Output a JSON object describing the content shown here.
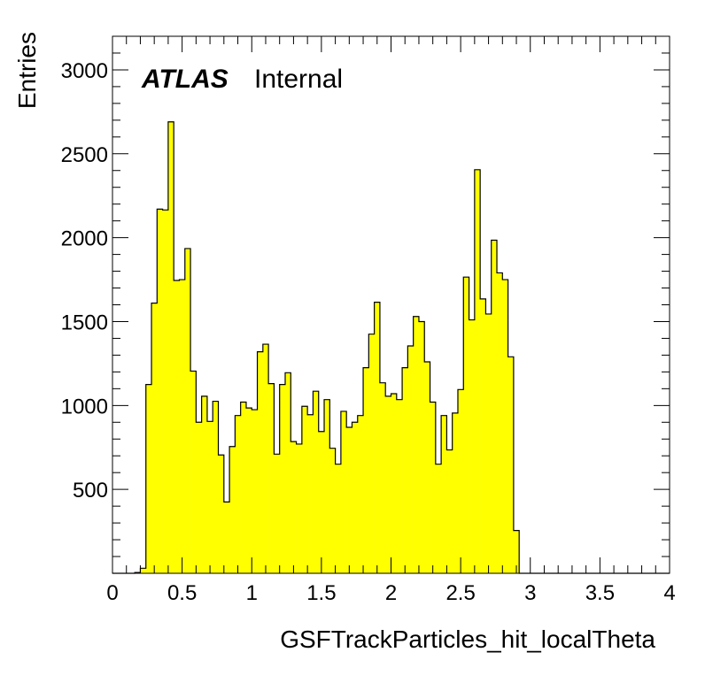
{
  "chart_data": {
    "type": "bar",
    "style": "histogram",
    "xlabel": "GSFTrackParticles_hit_localTheta",
    "ylabel": "Entries",
    "xlim": [
      0,
      4
    ],
    "ylim": [
      0,
      3200
    ],
    "bin_width": 0.04,
    "fill_color": "#ffff00",
    "line_color": "#000000",
    "xticks": [
      {
        "value": 0,
        "label": "0"
      },
      {
        "value": 0.5,
        "label": "0.5"
      },
      {
        "value": 1,
        "label": "1"
      },
      {
        "value": 1.5,
        "label": "1.5"
      },
      {
        "value": 2,
        "label": "2"
      },
      {
        "value": 2.5,
        "label": "2.5"
      },
      {
        "value": 3,
        "label": "3"
      },
      {
        "value": 3.5,
        "label": "3.5"
      },
      {
        "value": 4,
        "label": "4"
      }
    ],
    "yticks": [
      {
        "value": 500,
        "label": "500"
      },
      {
        "value": 1000,
        "label": "1000"
      },
      {
        "value": 1500,
        "label": "1500"
      },
      {
        "value": 2000,
        "label": "2000"
      },
      {
        "value": 2500,
        "label": "2500"
      },
      {
        "value": 3000,
        "label": "3000"
      }
    ],
    "bin_edges_start": [
      0.16,
      0.2,
      0.24,
      0.28,
      0.32,
      0.36,
      0.4,
      0.44,
      0.48,
      0.52,
      0.56,
      0.6,
      0.64,
      0.68,
      0.72,
      0.76,
      0.8,
      0.84,
      0.88,
      0.92,
      0.96,
      1.0,
      1.04,
      1.08,
      1.12,
      1.16,
      1.2,
      1.24,
      1.28,
      1.32,
      1.36,
      1.4,
      1.44,
      1.48,
      1.52,
      1.56,
      1.6,
      1.64,
      1.68,
      1.72,
      1.76,
      1.8,
      1.84,
      1.88,
      1.92,
      1.96,
      2.0,
      2.04,
      2.08,
      2.12,
      2.16,
      2.2,
      2.24,
      2.28,
      2.32,
      2.36,
      2.4,
      2.44,
      2.48,
      2.52,
      2.56,
      2.6,
      2.64,
      2.68,
      2.72,
      2.76,
      2.8,
      2.84,
      2.88
    ],
    "values": [
      5,
      30,
      1125,
      1610,
      2170,
      2165,
      2690,
      1745,
      1750,
      1935,
      1205,
      900,
      1055,
      905,
      1025,
      705,
      425,
      755,
      940,
      1020,
      985,
      975,
      1320,
      1365,
      1130,
      710,
      1125,
      1195,
      785,
      770,
      995,
      945,
      1085,
      845,
      1035,
      745,
      650,
      965,
      870,
      900,
      940,
      1225,
      1425,
      1615,
      1135,
      1055,
      1070,
      1035,
      1225,
      1355,
      1530,
      1500,
      1260,
      1020,
      650,
      940,
      735,
      955,
      1095,
      1765,
      1510,
      2405,
      1635,
      1545,
      1985,
      1790,
      1750,
      1290,
      255
    ]
  },
  "logo": {
    "atlas": "ATLAS",
    "label": "Internal"
  }
}
